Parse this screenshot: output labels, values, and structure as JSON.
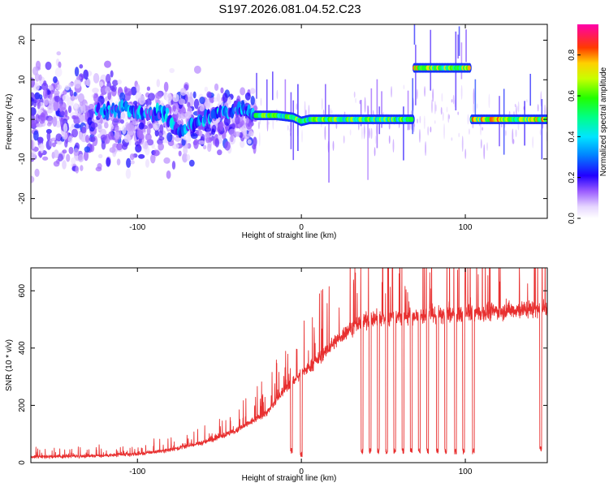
{
  "page_title": "S197.2026.081.04.52.C23",
  "chart_data": [
    {
      "type": "heatmap",
      "title": "S197.2026.081.04.52.C23",
      "xlabel": "Height of straight line (km)",
      "ylabel": "Frequency (Hz)",
      "xlim": [
        -165,
        150
      ],
      "ylim": [
        -25,
        24
      ],
      "x_ticks": [
        -100,
        0,
        100
      ],
      "y_ticks": [
        -20,
        -10,
        0,
        10,
        20
      ],
      "colorbar": {
        "label": "Normalized spectral amplitude",
        "range": [
          0,
          0.95
        ],
        "ticks": [
          0.0,
          0.2,
          0.4,
          0.6,
          0.8
        ],
        "tick_labels": [
          "0.0",
          "0.2",
          "0.4",
          "0.6",
          "0.8"
        ]
      },
      "traces": [
        {
          "name": "scattered noise",
          "x_range": [
            -165,
            -28
          ],
          "freq_center": 0,
          "freq_spread": 24,
          "amplitude": 0.15
        },
        {
          "name": "wandering line",
          "x": [
            -125,
            -110,
            -95,
            -85,
            -75,
            -65,
            -55,
            -45,
            -35,
            -28
          ],
          "freq": [
            2,
            3,
            1,
            2,
            -3,
            -1,
            1,
            2,
            3,
            1
          ],
          "amplitude": 0.3
        },
        {
          "name": "main line",
          "x": [
            -28,
            -15,
            -5,
            0,
            5,
            20,
            40,
            68
          ],
          "freq": [
            1,
            1,
            0.5,
            -0.5,
            0,
            0,
            0,
            0
          ],
          "amplitude": 0.6
        },
        {
          "name": "shifted segment",
          "x": [
            69,
            103
          ],
          "freq": [
            13,
            13
          ],
          "amplitude": 0.7
        },
        {
          "name": "final segment",
          "x": [
            104,
            150
          ],
          "freq": [
            0,
            0
          ],
          "amplitude": 0.75
        }
      ]
    },
    {
      "type": "line",
      "xlabel": "Height of straight line (km)",
      "ylabel": "SNR (10 * v/v)",
      "xlim": [
        -165,
        150
      ],
      "ylim": [
        0,
        680
      ],
      "x_ticks": [
        -100,
        0,
        100
      ],
      "y_ticks": [
        0,
        200,
        400,
        600
      ],
      "color": "#e83030",
      "series": [
        {
          "name": "SNR trend",
          "x": [
            -165,
            -120,
            -100,
            -80,
            -60,
            -40,
            -20,
            -10,
            0,
            10,
            20,
            30,
            40,
            60,
            80,
            100,
            120,
            150
          ],
          "y": [
            20,
            25,
            30,
            45,
            70,
            110,
            180,
            260,
            310,
            360,
            420,
            470,
            500,
            510,
            515,
            520,
            530,
            540
          ]
        },
        {
          "name": "dropouts",
          "x": [
            -6,
            0,
            37,
            42,
            47,
            52,
            57,
            62,
            67,
            72,
            77,
            83,
            88,
            94,
            99,
            105,
            146
          ],
          "y": [
            30,
            20,
            30,
            30,
            30,
            30,
            30,
            30,
            30,
            30,
            30,
            30,
            30,
            30,
            30,
            30,
            40
          ]
        },
        {
          "name": "spike",
          "x": [
            100
          ],
          "y": [
            690
          ]
        }
      ]
    }
  ]
}
